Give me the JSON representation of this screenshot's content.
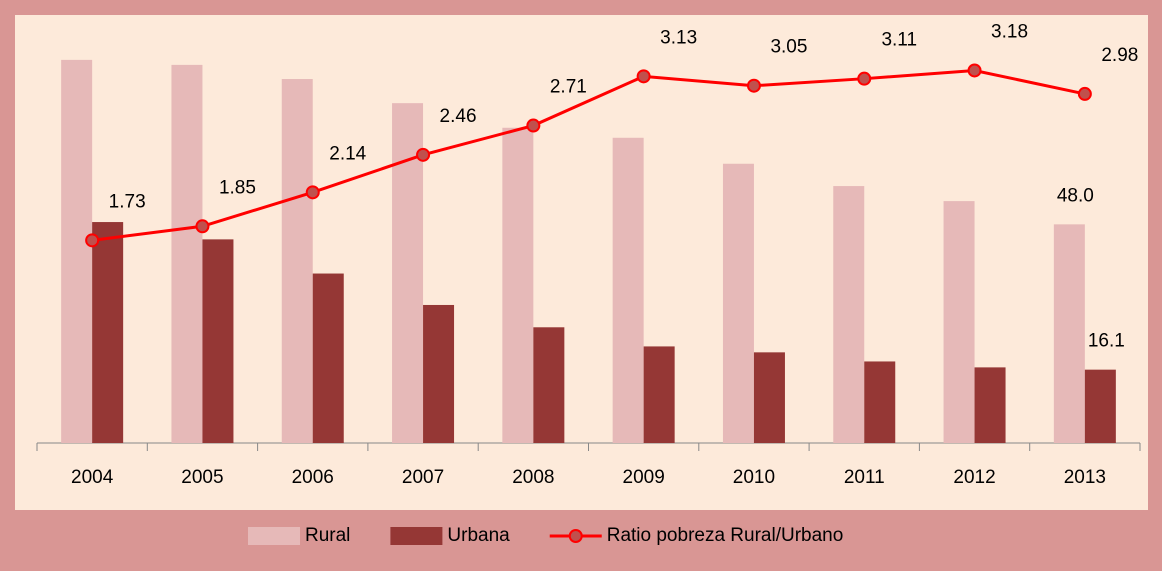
{
  "chart_data": {
    "type": "bar-line",
    "categories": [
      "2004",
      "2005",
      "2006",
      "2007",
      "2008",
      "2009",
      "2010",
      "2011",
      "2012",
      "2013"
    ],
    "series": [
      {
        "name": "Rural",
        "color": "#e6b9b8",
        "type": "bar",
        "values": [
          84.1,
          83.0,
          79.9,
          74.6,
          69.2,
          67.0,
          61.3,
          56.4,
          53.1,
          48.0
        ],
        "value_labels": [
          null,
          null,
          null,
          null,
          null,
          null,
          null,
          null,
          null,
          "48.0"
        ]
      },
      {
        "name": "Urbana",
        "color": "#953735",
        "type": "bar",
        "values": [
          48.5,
          44.7,
          37.2,
          30.3,
          25.4,
          21.2,
          19.9,
          17.9,
          16.6,
          16.1
        ],
        "value_labels": [
          null,
          null,
          null,
          null,
          null,
          null,
          null,
          null,
          null,
          "16.1"
        ]
      },
      {
        "name": "Ratio pobreza Rural/Urbano",
        "color": "#ff0000",
        "type": "line",
        "axis": "y2",
        "values": [
          1.73,
          1.85,
          2.14,
          2.46,
          2.71,
          3.13,
          3.05,
          3.11,
          3.18,
          2.98
        ]
      }
    ],
    "ylim": [
      0,
      90
    ],
    "y2lim": [
      0,
      3.5
    ],
    "legend": "bottom"
  }
}
